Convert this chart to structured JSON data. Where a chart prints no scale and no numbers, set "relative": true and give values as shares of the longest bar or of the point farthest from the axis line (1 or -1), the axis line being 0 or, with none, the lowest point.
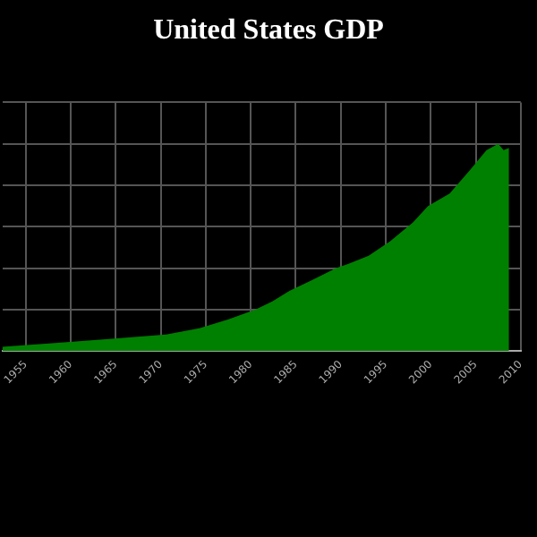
{
  "chart_data": {
    "type": "area",
    "title": "United States GDP",
    "relative": true,
    "x": [
      1952.4,
      1958.6,
      1964.9,
      1970.6,
      1974.3,
      1977.3,
      1980.5,
      1982.4,
      1984.3,
      1986.7,
      1989.5,
      1990.8,
      1993.1,
      1995.5,
      1998.0,
      1999.7,
      2002.1,
      2004.3,
      2006.2,
      2007.5,
      2008.1,
      2008.7
    ],
    "values": [
      0.02,
      0.04,
      0.06,
      0.08,
      0.11,
      0.15,
      0.2,
      0.24,
      0.29,
      0.34,
      0.4,
      0.42,
      0.46,
      0.53,
      0.62,
      0.7,
      0.76,
      0.87,
      0.97,
      1,
      0.97,
      0.98
    ],
    "color": "#008000",
    "xlim": [
      1952.4,
      2010
    ],
    "xticks": [
      1955,
      1960,
      1965,
      1970,
      1975,
      1980,
      1985,
      1990,
      1995,
      2000,
      2005,
      2010
    ],
    "grid": true,
    "legend": false
  }
}
